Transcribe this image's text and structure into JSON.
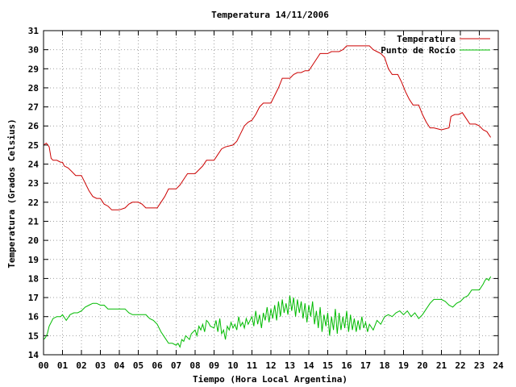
{
  "chart_data": {
    "type": "line",
    "title": "Temperatura 14/11/2006",
    "xlabel": "Tiempo (Hora Local Argentina)",
    "ylabel": "Temperatura (Grados Celsius)",
    "xlim": [
      0,
      24
    ],
    "ylim": [
      14,
      31
    ],
    "x_ticks": [
      0,
      1,
      2,
      3,
      4,
      5,
      6,
      7,
      8,
      9,
      10,
      11,
      12,
      13,
      14,
      15,
      16,
      17,
      18,
      19,
      20,
      21,
      22,
      23,
      24
    ],
    "x_tick_labels": [
      "00",
      "01",
      "02",
      "03",
      "04",
      "05",
      "06",
      "07",
      "08",
      "09",
      "10",
      "11",
      "12",
      "13",
      "14",
      "15",
      "16",
      "17",
      "18",
      "19",
      "20",
      "21",
      "22",
      "23",
      "24"
    ],
    "y_ticks": [
      14,
      15,
      16,
      17,
      18,
      19,
      20,
      21,
      22,
      23,
      24,
      25,
      26,
      27,
      28,
      29,
      30,
      31
    ],
    "grid": true,
    "legend_position": "top-right",
    "series": [
      {
        "name": "Temperatura",
        "color": "#cc0000",
        "points": [
          [
            0.0,
            25.0
          ],
          [
            0.15,
            25.1
          ],
          [
            0.3,
            24.9
          ],
          [
            0.4,
            24.3
          ],
          [
            0.5,
            24.2
          ],
          [
            0.7,
            24.2
          ],
          [
            0.9,
            24.1
          ],
          [
            1.0,
            24.1
          ],
          [
            1.1,
            23.9
          ],
          [
            1.3,
            23.8
          ],
          [
            1.5,
            23.6
          ],
          [
            1.7,
            23.4
          ],
          [
            2.0,
            23.4
          ],
          [
            2.2,
            23.0
          ],
          [
            2.4,
            22.6
          ],
          [
            2.6,
            22.3
          ],
          [
            2.8,
            22.2
          ],
          [
            3.0,
            22.2
          ],
          [
            3.2,
            21.9
          ],
          [
            3.4,
            21.8
          ],
          [
            3.6,
            21.6
          ],
          [
            3.8,
            21.6
          ],
          [
            4.0,
            21.6
          ],
          [
            4.3,
            21.7
          ],
          [
            4.5,
            21.9
          ],
          [
            4.7,
            22.0
          ],
          [
            5.0,
            22.0
          ],
          [
            5.2,
            21.9
          ],
          [
            5.4,
            21.7
          ],
          [
            5.6,
            21.7
          ],
          [
            6.0,
            21.7
          ],
          [
            6.2,
            22.0
          ],
          [
            6.4,
            22.3
          ],
          [
            6.6,
            22.7
          ],
          [
            7.0,
            22.7
          ],
          [
            7.2,
            22.9
          ],
          [
            7.4,
            23.2
          ],
          [
            7.6,
            23.5
          ],
          [
            8.0,
            23.5
          ],
          [
            8.2,
            23.7
          ],
          [
            8.4,
            23.9
          ],
          [
            8.6,
            24.2
          ],
          [
            9.0,
            24.2
          ],
          [
            9.2,
            24.5
          ],
          [
            9.4,
            24.8
          ],
          [
            9.6,
            24.9
          ],
          [
            10.0,
            25.0
          ],
          [
            10.2,
            25.2
          ],
          [
            10.4,
            25.6
          ],
          [
            10.6,
            26.0
          ],
          [
            10.8,
            26.2
          ],
          [
            11.0,
            26.3
          ],
          [
            11.2,
            26.6
          ],
          [
            11.4,
            27.0
          ],
          [
            11.6,
            27.2
          ],
          [
            12.0,
            27.2
          ],
          [
            12.2,
            27.6
          ],
          [
            12.4,
            28.0
          ],
          [
            12.6,
            28.5
          ],
          [
            13.0,
            28.5
          ],
          [
            13.2,
            28.7
          ],
          [
            13.4,
            28.8
          ],
          [
            13.6,
            28.8
          ],
          [
            13.8,
            28.9
          ],
          [
            14.0,
            28.9
          ],
          [
            14.2,
            29.2
          ],
          [
            14.4,
            29.5
          ],
          [
            14.6,
            29.8
          ],
          [
            14.8,
            29.8
          ],
          [
            15.0,
            29.8
          ],
          [
            15.2,
            29.9
          ],
          [
            15.4,
            29.9
          ],
          [
            15.6,
            29.9
          ],
          [
            15.8,
            30.0
          ],
          [
            16.0,
            30.2
          ],
          [
            16.2,
            30.2
          ],
          [
            16.5,
            30.2
          ],
          [
            16.8,
            30.2
          ],
          [
            17.0,
            30.2
          ],
          [
            17.2,
            30.2
          ],
          [
            17.4,
            30.0
          ],
          [
            17.6,
            29.9
          ],
          [
            17.8,
            29.8
          ],
          [
            18.0,
            29.6
          ],
          [
            18.2,
            29.0
          ],
          [
            18.4,
            28.7
          ],
          [
            18.7,
            28.7
          ],
          [
            18.9,
            28.3
          ],
          [
            19.1,
            27.8
          ],
          [
            19.3,
            27.4
          ],
          [
            19.5,
            27.1
          ],
          [
            19.8,
            27.1
          ],
          [
            20.0,
            26.6
          ],
          [
            20.2,
            26.2
          ],
          [
            20.4,
            25.9
          ],
          [
            20.6,
            25.9
          ],
          [
            21.0,
            25.8
          ],
          [
            21.4,
            25.9
          ],
          [
            21.5,
            26.5
          ],
          [
            21.7,
            26.6
          ],
          [
            21.9,
            26.6
          ],
          [
            22.1,
            26.7
          ],
          [
            22.3,
            26.4
          ],
          [
            22.5,
            26.1
          ],
          [
            22.8,
            26.1
          ],
          [
            23.0,
            26.0
          ],
          [
            23.2,
            25.8
          ],
          [
            23.4,
            25.7
          ],
          [
            23.6,
            25.4
          ]
        ]
      },
      {
        "name": "Punto de Rocío",
        "color": "#00bb00",
        "points": [
          [
            0.0,
            14.8
          ],
          [
            0.1,
            14.9
          ],
          [
            0.2,
            15.1
          ],
          [
            0.3,
            15.5
          ],
          [
            0.5,
            15.9
          ],
          [
            0.7,
            16.0
          ],
          [
            0.9,
            16.0
          ],
          [
            1.0,
            16.1
          ],
          [
            1.2,
            15.8
          ],
          [
            1.4,
            16.1
          ],
          [
            1.6,
            16.2
          ],
          [
            1.8,
            16.2
          ],
          [
            2.0,
            16.3
          ],
          [
            2.2,
            16.5
          ],
          [
            2.4,
            16.6
          ],
          [
            2.6,
            16.7
          ],
          [
            2.8,
            16.7
          ],
          [
            3.0,
            16.6
          ],
          [
            3.2,
            16.6
          ],
          [
            3.4,
            16.4
          ],
          [
            3.6,
            16.4
          ],
          [
            3.8,
            16.4
          ],
          [
            4.0,
            16.4
          ],
          [
            4.3,
            16.4
          ],
          [
            4.5,
            16.2
          ],
          [
            4.7,
            16.1
          ],
          [
            5.0,
            16.1
          ],
          [
            5.2,
            16.1
          ],
          [
            5.4,
            16.1
          ],
          [
            5.6,
            15.9
          ],
          [
            5.8,
            15.8
          ],
          [
            6.0,
            15.6
          ],
          [
            6.2,
            15.2
          ],
          [
            6.4,
            14.9
          ],
          [
            6.6,
            14.6
          ],
          [
            6.8,
            14.6
          ],
          [
            7.0,
            14.5
          ],
          [
            7.1,
            14.6
          ],
          [
            7.2,
            14.4
          ],
          [
            7.3,
            14.8
          ],
          [
            7.4,
            14.7
          ],
          [
            7.5,
            15.0
          ],
          [
            7.6,
            14.9
          ],
          [
            7.7,
            14.8
          ],
          [
            7.8,
            15.1
          ],
          [
            8.0,
            15.3
          ],
          [
            8.1,
            15.0
          ],
          [
            8.2,
            15.5
          ],
          [
            8.3,
            15.3
          ],
          [
            8.4,
            15.6
          ],
          [
            8.5,
            15.2
          ],
          [
            8.6,
            15.8
          ],
          [
            8.7,
            15.7
          ],
          [
            8.8,
            15.5
          ],
          [
            9.0,
            15.4
          ],
          [
            9.1,
            15.8
          ],
          [
            9.2,
            15.2
          ],
          [
            9.3,
            15.9
          ],
          [
            9.4,
            15.1
          ],
          [
            9.5,
            15.3
          ],
          [
            9.6,
            14.8
          ],
          [
            9.7,
            15.5
          ],
          [
            9.8,
            15.3
          ],
          [
            9.9,
            15.7
          ],
          [
            10.0,
            15.4
          ],
          [
            10.1,
            15.6
          ],
          [
            10.2,
            15.3
          ],
          [
            10.3,
            16.0
          ],
          [
            10.4,
            15.5
          ],
          [
            10.5,
            15.7
          ],
          [
            10.6,
            15.4
          ],
          [
            10.7,
            15.9
          ],
          [
            10.8,
            15.6
          ],
          [
            11.0,
            16.0
          ],
          [
            11.1,
            15.5
          ],
          [
            11.2,
            16.3
          ],
          [
            11.3,
            15.6
          ],
          [
            11.4,
            16.1
          ],
          [
            11.5,
            15.4
          ],
          [
            11.6,
            16.2
          ],
          [
            11.7,
            15.8
          ],
          [
            11.8,
            16.5
          ],
          [
            11.9,
            15.7
          ],
          [
            12.0,
            16.4
          ],
          [
            12.1,
            15.9
          ],
          [
            12.2,
            16.6
          ],
          [
            12.3,
            15.8
          ],
          [
            12.4,
            16.8
          ],
          [
            12.5,
            16.0
          ],
          [
            12.6,
            16.9
          ],
          [
            12.7,
            16.2
          ],
          [
            12.8,
            16.7
          ],
          [
            12.9,
            16.1
          ],
          [
            13.0,
            17.1
          ],
          [
            13.1,
            16.3
          ],
          [
            13.2,
            17.0
          ],
          [
            13.3,
            16.0
          ],
          [
            13.4,
            16.9
          ],
          [
            13.5,
            16.2
          ],
          [
            13.6,
            16.8
          ],
          [
            13.7,
            15.9
          ],
          [
            13.8,
            16.7
          ],
          [
            13.9,
            15.7
          ],
          [
            14.0,
            16.6
          ],
          [
            14.1,
            16.0
          ],
          [
            14.2,
            16.8
          ],
          [
            14.3,
            15.6
          ],
          [
            14.4,
            16.3
          ],
          [
            14.5,
            15.4
          ],
          [
            14.6,
            16.5
          ],
          [
            14.7,
            15.2
          ],
          [
            14.8,
            16.1
          ],
          [
            14.9,
            15.5
          ],
          [
            15.0,
            16.2
          ],
          [
            15.1,
            15.0
          ],
          [
            15.2,
            16.0
          ],
          [
            15.3,
            15.3
          ],
          [
            15.4,
            16.4
          ],
          [
            15.5,
            15.1
          ],
          [
            15.6,
            16.2
          ],
          [
            15.7,
            15.3
          ],
          [
            15.8,
            16.0
          ],
          [
            15.9,
            15.4
          ],
          [
            16.0,
            16.3
          ],
          [
            16.1,
            15.2
          ],
          [
            16.2,
            16.1
          ],
          [
            16.3,
            15.3
          ],
          [
            16.4,
            15.9
          ],
          [
            16.5,
            15.2
          ],
          [
            16.6,
            15.8
          ],
          [
            16.7,
            15.3
          ],
          [
            16.8,
            16.0
          ],
          [
            16.9,
            15.4
          ],
          [
            17.0,
            15.7
          ],
          [
            17.1,
            15.2
          ],
          [
            17.2,
            15.6
          ],
          [
            17.4,
            15.3
          ],
          [
            17.6,
            15.8
          ],
          [
            17.8,
            15.6
          ],
          [
            18.0,
            16.0
          ],
          [
            18.2,
            16.1
          ],
          [
            18.4,
            16.0
          ],
          [
            18.6,
            16.2
          ],
          [
            18.8,
            16.3
          ],
          [
            19.0,
            16.1
          ],
          [
            19.2,
            16.3
          ],
          [
            19.4,
            16.0
          ],
          [
            19.6,
            16.2
          ],
          [
            19.8,
            15.9
          ],
          [
            20.0,
            16.1
          ],
          [
            20.2,
            16.4
          ],
          [
            20.4,
            16.7
          ],
          [
            20.6,
            16.9
          ],
          [
            20.8,
            16.9
          ],
          [
            21.0,
            16.9
          ],
          [
            21.2,
            16.8
          ],
          [
            21.4,
            16.6
          ],
          [
            21.6,
            16.5
          ],
          [
            21.8,
            16.7
          ],
          [
            22.0,
            16.8
          ],
          [
            22.2,
            17.0
          ],
          [
            22.4,
            17.1
          ],
          [
            22.6,
            17.4
          ],
          [
            22.8,
            17.4
          ],
          [
            23.0,
            17.4
          ],
          [
            23.2,
            17.7
          ],
          [
            23.3,
            17.9
          ],
          [
            23.4,
            18.0
          ],
          [
            23.5,
            17.9
          ],
          [
            23.6,
            18.1
          ]
        ]
      }
    ]
  }
}
